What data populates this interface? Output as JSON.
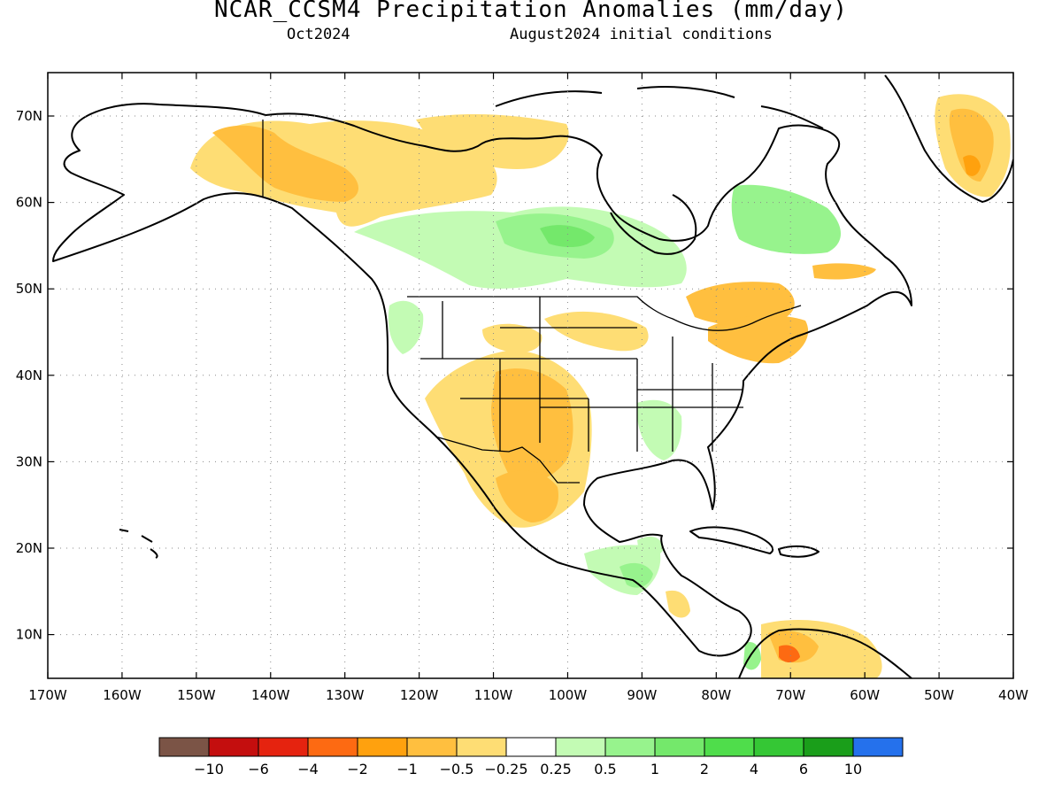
{
  "header": {
    "title": "NCAR_CCSM4 Precipitation Anomalies (mm/day)",
    "target_month": "Oct2024",
    "initial_conditions": "August2024 initial conditions"
  },
  "axes": {
    "lon_labels": [
      "170W",
      "160W",
      "150W",
      "140W",
      "130W",
      "120W",
      "110W",
      "100W",
      "90W",
      "80W",
      "70W",
      "60W",
      "50W",
      "40W"
    ],
    "lat_labels": [
      "70N",
      "60N",
      "50N",
      "40N",
      "30N",
      "20N",
      "10N"
    ]
  },
  "colorbar": {
    "colors": [
      "#7b5446",
      "#c40e0e",
      "#e5230f",
      "#fd6a12",
      "#ffa10e",
      "#ffbf3f",
      "#fedd74",
      "#ffffff",
      "#c3fbb4",
      "#97f38d",
      "#74e86b",
      "#4fdd4b",
      "#35c735",
      "#1a9e1a",
      "#2571ec"
    ],
    "tick_labels": [
      "−10",
      "−6",
      "−4",
      "−2",
      "−1",
      "−0.5",
      "−0.25",
      "0.25",
      "0.5",
      "1",
      "2",
      "4",
      "6",
      "10"
    ]
  }
}
